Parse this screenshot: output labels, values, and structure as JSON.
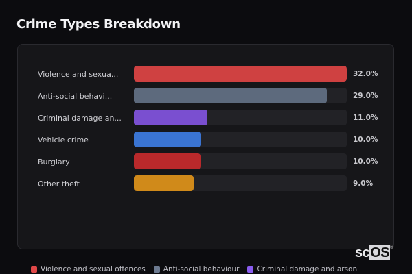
{
  "title": "Crime Types Breakdown",
  "chart_data": {
    "type": "bar",
    "orientation": "horizontal",
    "title": "Crime Types Breakdown",
    "categories": [
      "Violence and sexual offences",
      "Anti-social behaviour",
      "Criminal damage and arson",
      "Vehicle crime",
      "Burglary",
      "Other theft"
    ],
    "display_labels": [
      "Violence and sexua...",
      "Anti-social behavi...",
      "Criminal damage an...",
      "Vehicle crime",
      "Burglary",
      "Other theft"
    ],
    "values": [
      32.0,
      29.0,
      11.0,
      10.0,
      10.0,
      9.0
    ],
    "value_labels": [
      "32.0%",
      "29.0%",
      "11.0%",
      "10.0%",
      "10.0%",
      "9.0%"
    ],
    "colors": [
      "#cf4141",
      "#5d6a7d",
      "#7a4fd0",
      "#3a74d2",
      "#b9292b",
      "#d08a1a"
    ],
    "xlim": [
      0,
      32
    ],
    "unit": "%",
    "grid": false,
    "legend_position": "bottom"
  },
  "legend": [
    {
      "label": "Violence and sexual offences",
      "color": "#e04848"
    },
    {
      "label": "Anti-social behaviour",
      "color": "#6c7a90"
    },
    {
      "label": "Criminal damage and arson",
      "color": "#8a5cf0"
    }
  ],
  "watermark": {
    "prefix": "sc",
    "highlight": "OS",
    "mark": "®"
  }
}
